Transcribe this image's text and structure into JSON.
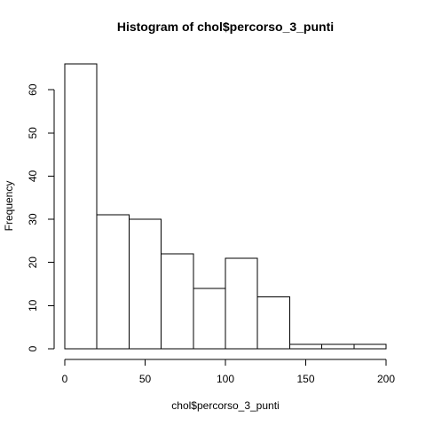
{
  "chart_data": {
    "type": "bar",
    "title": "Histogram of chol$percorso_3_punti",
    "xlabel": "chol$percorso_3_punti",
    "ylabel": "Frequency",
    "bins": [
      {
        "start": 0,
        "end": 20,
        "count": 66
      },
      {
        "start": 20,
        "end": 40,
        "count": 31
      },
      {
        "start": 40,
        "end": 60,
        "count": 30
      },
      {
        "start": 60,
        "end": 80,
        "count": 22
      },
      {
        "start": 80,
        "end": 100,
        "count": 14
      },
      {
        "start": 100,
        "end": 120,
        "count": 21
      },
      {
        "start": 120,
        "end": 140,
        "count": 12
      },
      {
        "start": 140,
        "end": 160,
        "count": 1
      },
      {
        "start": 160,
        "end": 180,
        "count": 1
      },
      {
        "start": 180,
        "end": 200,
        "count": 1
      }
    ],
    "xlim": [
      0,
      200
    ],
    "ylim": [
      0,
      66
    ],
    "xticks": [
      "0",
      "50",
      "100",
      "150",
      "200"
    ],
    "yticks": [
      "0",
      "10",
      "20",
      "30",
      "40",
      "50",
      "60"
    ],
    "grid": false,
    "bar_fill": "#ffffff",
    "bar_stroke": "#000000"
  }
}
